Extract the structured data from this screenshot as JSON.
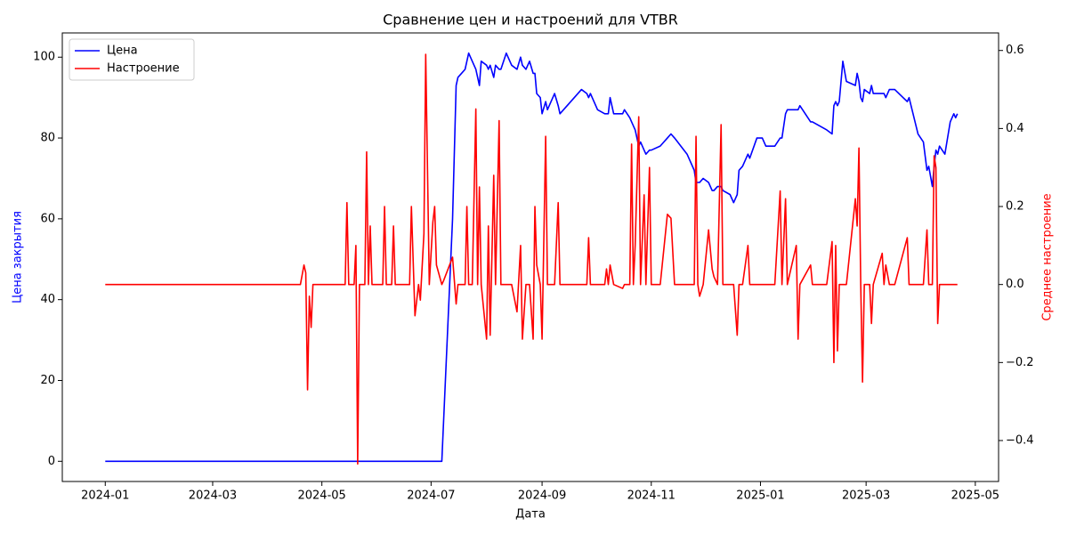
{
  "chart_data": {
    "type": "line",
    "title": "Сравнение цен и настроений для VTBR",
    "xlabel": "Дата",
    "ylabel": "Цена закрытия",
    "y2label": "Среднее настроение",
    "legend": "upper left",
    "grid": false,
    "xlim": [
      "2023-12-08",
      "2025-05-14"
    ],
    "xticks": [
      {
        "value": "2024-01-01",
        "label": "2024-01"
      },
      {
        "value": "2024-03-01",
        "label": "2024-03"
      },
      {
        "value": "2024-05-01",
        "label": "2024-05"
      },
      {
        "value": "2024-07-01",
        "label": "2024-07"
      },
      {
        "value": "2024-09-01",
        "label": "2024-09"
      },
      {
        "value": "2024-11-01",
        "label": "2024-11"
      },
      {
        "value": "2025-01-01",
        "label": "2025-01"
      },
      {
        "value": "2025-03-01",
        "label": "2025-03"
      },
      {
        "value": "2025-05-01",
        "label": "2025-05"
      }
    ],
    "ylim": [
      -5,
      106
    ],
    "yticks": [
      0,
      20,
      40,
      60,
      80,
      100
    ],
    "y2lim": [
      -0.505,
      0.645
    ],
    "y2ticks": [
      {
        "value": -0.4,
        "label": "−0.4"
      },
      {
        "value": -0.2,
        "label": "−0.2"
      },
      {
        "value": 0,
        "label": "0.0"
      },
      0.2,
      0.4,
      0.6
    ],
    "x": [
      "2024-01-01",
      "2024-04-19",
      "2024-04-21",
      "2024-04-22",
      "2024-04-23",
      "2024-04-24",
      "2024-04-25",
      "2024-04-26",
      "2024-05-14",
      "2024-05-15",
      "2024-05-16",
      "2024-05-19",
      "2024-05-20",
      "2024-05-21",
      "2024-05-22",
      "2024-05-25",
      "2024-05-26",
      "2024-05-27",
      "2024-05-28",
      "2024-05-29",
      "2024-06-04",
      "2024-06-05",
      "2024-06-06",
      "2024-06-09",
      "2024-06-10",
      "2024-06-11",
      "2024-06-19",
      "2024-06-20",
      "2024-06-22",
      "2024-06-24",
      "2024-06-25",
      "2024-06-27",
      "2024-06-28",
      "2024-06-30",
      "2024-07-02",
      "2024-07-03",
      "2024-07-04",
      "2024-07-07",
      "2024-07-08",
      "2024-07-13",
      "2024-07-15",
      "2024-07-16",
      "2024-07-18",
      "2024-07-20",
      "2024-07-21",
      "2024-07-22",
      "2024-07-24",
      "2024-07-26",
      "2024-07-27",
      "2024-07-28",
      "2024-07-29",
      "2024-08-01",
      "2024-08-02",
      "2024-08-03",
      "2024-08-05",
      "2024-08-06",
      "2024-08-08",
      "2024-08-09",
      "2024-08-12",
      "2024-08-15",
      "2024-08-18",
      "2024-08-20",
      "2024-08-21",
      "2024-08-23",
      "2024-08-25",
      "2024-08-27",
      "2024-08-28",
      "2024-08-29",
      "2024-08-31",
      "2024-09-01",
      "2024-09-03",
      "2024-09-04",
      "2024-09-08",
      "2024-09-10",
      "2024-09-11",
      "2024-09-17",
      "2024-09-23",
      "2024-09-26",
      "2024-09-27",
      "2024-09-28",
      "2024-10-02",
      "2024-10-06",
      "2024-10-07",
      "2024-10-08",
      "2024-10-09",
      "2024-10-11",
      "2024-10-16",
      "2024-10-17",
      "2024-10-20",
      "2024-10-21",
      "2024-10-22",
      "2024-10-23",
      "2024-10-25",
      "2024-10-26",
      "2024-10-28",
      "2024-10-29",
      "2024-10-31",
      "2024-11-01",
      "2024-11-06",
      "2024-11-10",
      "2024-11-12",
      "2024-11-14",
      "2024-11-21",
      "2024-11-25",
      "2024-11-26",
      "2024-11-27",
      "2024-11-28",
      "2024-11-30",
      "2024-12-03",
      "2024-12-05",
      "2024-12-06",
      "2024-12-08",
      "2024-12-10",
      "2024-12-11",
      "2024-12-15",
      "2024-12-17",
      "2024-12-19",
      "2024-12-20",
      "2024-12-22",
      "2024-12-25",
      "2024-12-26",
      "2024-12-30",
      "2025-01-02",
      "2025-01-04",
      "2025-01-09",
      "2025-01-12",
      "2025-01-13",
      "2025-01-15",
      "2025-01-16",
      "2025-01-21",
      "2025-01-22",
      "2025-01-23",
      "2025-01-29",
      "2025-01-30",
      "2025-02-03",
      "2025-02-07",
      "2025-02-10",
      "2025-02-11",
      "2025-02-12",
      "2025-02-13",
      "2025-02-14",
      "2025-02-16",
      "2025-02-18",
      "2025-02-23",
      "2025-02-24",
      "2025-02-25",
      "2025-02-26",
      "2025-02-27",
      "2025-02-28",
      "2025-03-03",
      "2025-03-04",
      "2025-03-05",
      "2025-03-10",
      "2025-03-11",
      "2025-03-12",
      "2025-03-14",
      "2025-03-17",
      "2025-03-24",
      "2025-03-25",
      "2025-03-30",
      "2025-04-02",
      "2025-04-04",
      "2025-04-05",
      "2025-04-07",
      "2025-04-08",
      "2025-04-09",
      "2025-04-10",
      "2025-04-11",
      "2025-04-14",
      "2025-04-17",
      "2025-04-19",
      "2025-04-20",
      "2025-04-21"
    ],
    "series": [
      {
        "name": "Цена",
        "color": "#0000ff",
        "axis": "y",
        "values": [
          0,
          0,
          0,
          0,
          0,
          0,
          0,
          0,
          0,
          0,
          0,
          0,
          0,
          0,
          0,
          0,
          0,
          0,
          0,
          0,
          0,
          0,
          0,
          0,
          0,
          0,
          0,
          0,
          0,
          0,
          0,
          0,
          0,
          0,
          0,
          0,
          0,
          0,
          10,
          60,
          93,
          95,
          96,
          97,
          99,
          101,
          99,
          97,
          95,
          93,
          99,
          98,
          97,
          98,
          95,
          98,
          97,
          97,
          101,
          98,
          97,
          100,
          98,
          97,
          99,
          96,
          96,
          91,
          90,
          86,
          89,
          87,
          91,
          88,
          86,
          89,
          92,
          91,
          90,
          91,
          87,
          86,
          86,
          86,
          90,
          86,
          86,
          87,
          85,
          84,
          83,
          82,
          78,
          79,
          77,
          76,
          77,
          77,
          78,
          80,
          81,
          80,
          76,
          72,
          69,
          69,
          69,
          70,
          69,
          67,
          67,
          68,
          68,
          67,
          66,
          64,
          66,
          72,
          73,
          76,
          75,
          80,
          80,
          78,
          78,
          80,
          80,
          86,
          87,
          87,
          87,
          88,
          84,
          84,
          83,
          82,
          81,
          88,
          89,
          88,
          89,
          99,
          94,
          93,
          96,
          94,
          90,
          89,
          92,
          91,
          93,
          91,
          91,
          91,
          90,
          92,
          92,
          89,
          90,
          81,
          79,
          72,
          73,
          68,
          73,
          77,
          76,
          78,
          76,
          84,
          86,
          85,
          86
        ]
      },
      {
        "name": "Настроение",
        "color": "#ff0000",
        "axis": "y2",
        "values": [
          0,
          0,
          0.05,
          0.03,
          -0.27,
          -0.03,
          -0.11,
          0,
          0,
          0.21,
          0,
          0,
          0.1,
          -0.46,
          0,
          0,
          0.34,
          0,
          0.15,
          0,
          0,
          0.2,
          0,
          0,
          0.15,
          0,
          0,
          0.2,
          -0.08,
          0,
          -0.04,
          0.13,
          0.59,
          0,
          0.16,
          0.2,
          0.05,
          0,
          0.01,
          0.07,
          -0.05,
          0,
          0,
          0,
          0.2,
          0,
          0,
          0.45,
          0,
          0.25,
          0,
          -0.14,
          0.15,
          -0.13,
          0.28,
          0,
          0.42,
          0,
          0,
          0,
          -0.07,
          0.1,
          -0.14,
          0,
          0,
          -0.14,
          0.2,
          0.05,
          0,
          -0.14,
          0.38,
          0,
          0,
          0.21,
          0,
          0,
          0,
          0,
          0.12,
          0,
          0,
          0,
          0.04,
          0,
          0.05,
          0,
          -0.01,
          0,
          0,
          0.36,
          0,
          0.1,
          0.43,
          0,
          0.23,
          0,
          0.3,
          0,
          0,
          0.18,
          0.17,
          0,
          0,
          0,
          0.38,
          0,
          -0.03,
          0,
          0.14,
          0.04,
          0.02,
          0,
          0.41,
          0,
          0,
          0,
          -0.13,
          0,
          0,
          0.1,
          0,
          0,
          0,
          0,
          0,
          0.24,
          0,
          0.22,
          0,
          0.1,
          -0.14,
          0,
          0.05,
          0,
          0,
          0,
          0.11,
          -0.2,
          0.1,
          -0.17,
          0,
          0,
          0,
          0.22,
          0.15,
          0.35,
          0,
          -0.25,
          0,
          0,
          -0.1,
          0,
          0.08,
          0,
          0.05,
          0,
          0,
          0.12,
          0,
          0,
          0,
          0.14,
          0,
          0,
          0.33,
          0.3,
          -0.1,
          0,
          0,
          0,
          0,
          0,
          0
        ]
      }
    ]
  }
}
